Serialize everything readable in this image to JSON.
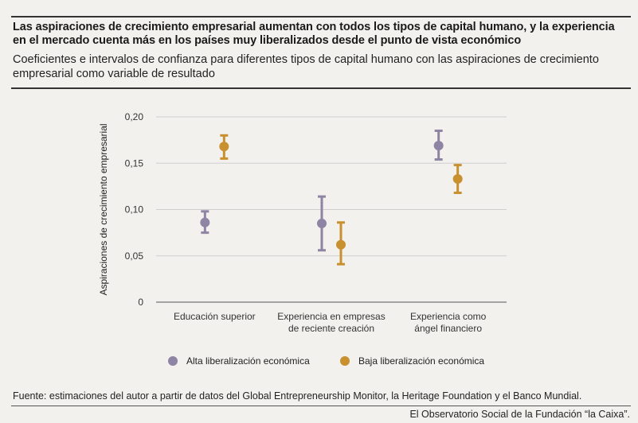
{
  "header": {
    "title": "Las aspiraciones de crecimiento empresarial aumentan con todos los tipos de capital humano, y la experiencia en el mercado cuenta más en los países muy liberalizados desde el punto de vista económico",
    "subtitle": "Coeficientes e intervalos de confianza para diferentes tipos de capital humano con las aspiraciones de crecimiento empresarial como variable de resultado"
  },
  "footer": {
    "source": "Fuente: estimaciones del autor a partir de datos del Global Entrepreneurship Monitor, la Heritage Foundation y el Banco Mundial.",
    "credit": "El Observatorio Social de la Fundación “la Caixa”."
  },
  "chart_data": {
    "type": "scatter",
    "subtype": "point-with-error-bars",
    "ylabel": "Aspiraciones de crecimiento empresarial",
    "ylim": [
      0,
      0.2
    ],
    "yticks": [
      0,
      0.05,
      0.1,
      0.15,
      0.2
    ],
    "ytick_labels": [
      "0",
      "0,05",
      "0,10",
      "0,15",
      "0,20"
    ],
    "grid": "horizontal",
    "legend_position": "bottom",
    "categories": [
      [
        "Educación superior"
      ],
      [
        "Experiencia en empresas",
        "de reciente creación"
      ],
      [
        "Experiencia como",
        "ángel financiero"
      ]
    ],
    "series": [
      {
        "name": "Alta liberalización económica",
        "color": "#8e84a3",
        "values": [
          0.086,
          0.085,
          0.169
        ],
        "lower": [
          0.075,
          0.056,
          0.154
        ],
        "upper": [
          0.098,
          0.114,
          0.185
        ]
      },
      {
        "name": "Baja liberalización económica",
        "color": "#c8902e",
        "values": [
          0.168,
          0.062,
          0.133
        ],
        "lower": [
          0.155,
          0.041,
          0.118
        ],
        "upper": [
          0.18,
          0.086,
          0.148
        ]
      }
    ]
  }
}
